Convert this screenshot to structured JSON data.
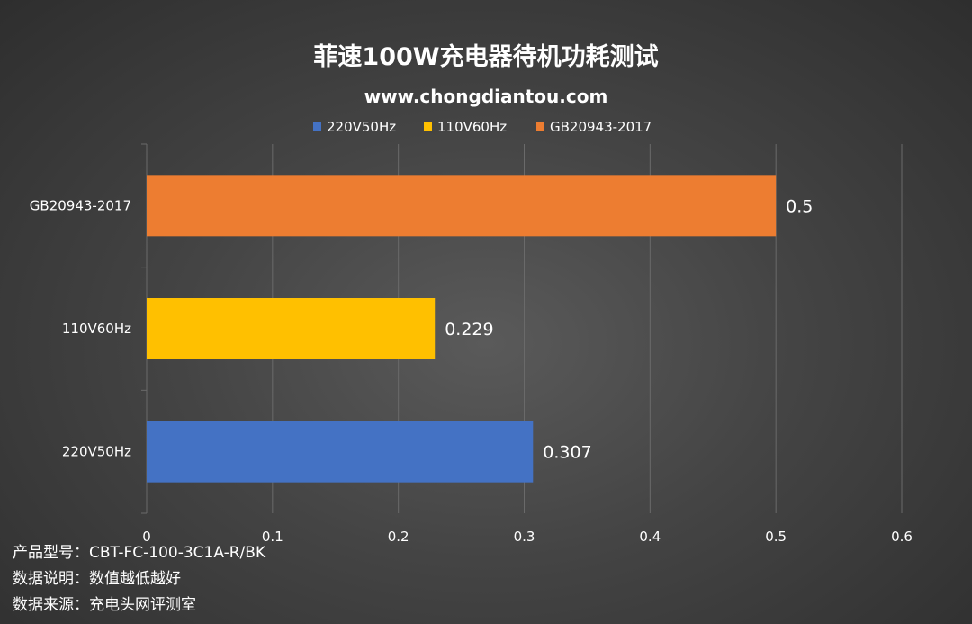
{
  "chart_data": {
    "type": "bar",
    "orientation": "horizontal",
    "title": "菲速100W充电器待机功耗测试",
    "subtitle": "www.chongdiantou.com",
    "categories": [
      "GB20943-2017",
      "110V60Hz",
      "220V50Hz"
    ],
    "values": [
      0.5,
      0.229,
      0.307
    ],
    "value_labels": [
      "0.5",
      "0.229",
      "0.307"
    ],
    "legend": [
      "220V50Hz",
      "110V60Hz",
      "GB20943-2017"
    ],
    "legend_position": "top",
    "xlim": [
      0,
      0.6
    ],
    "xticks": [
      0,
      0.1,
      0.2,
      0.3,
      0.4,
      0.5,
      0.6
    ],
    "xtick_labels": [
      "0",
      "0.1",
      "0.2",
      "0.3",
      "0.4",
      "0.5",
      "0.6"
    ],
    "grid": "vertical"
  },
  "colors": {
    "220V50Hz": "#4472C4",
    "110V60Hz": "#FFC000",
    "GB20943-2017": "#ED7D31",
    "grid": "#6a6a6a"
  },
  "notes": [
    "产品型号：CBT-FC-100-3C1A-R/BK",
    "数据说明：数值越低越好",
    "数据来源：充电头网评测室"
  ]
}
